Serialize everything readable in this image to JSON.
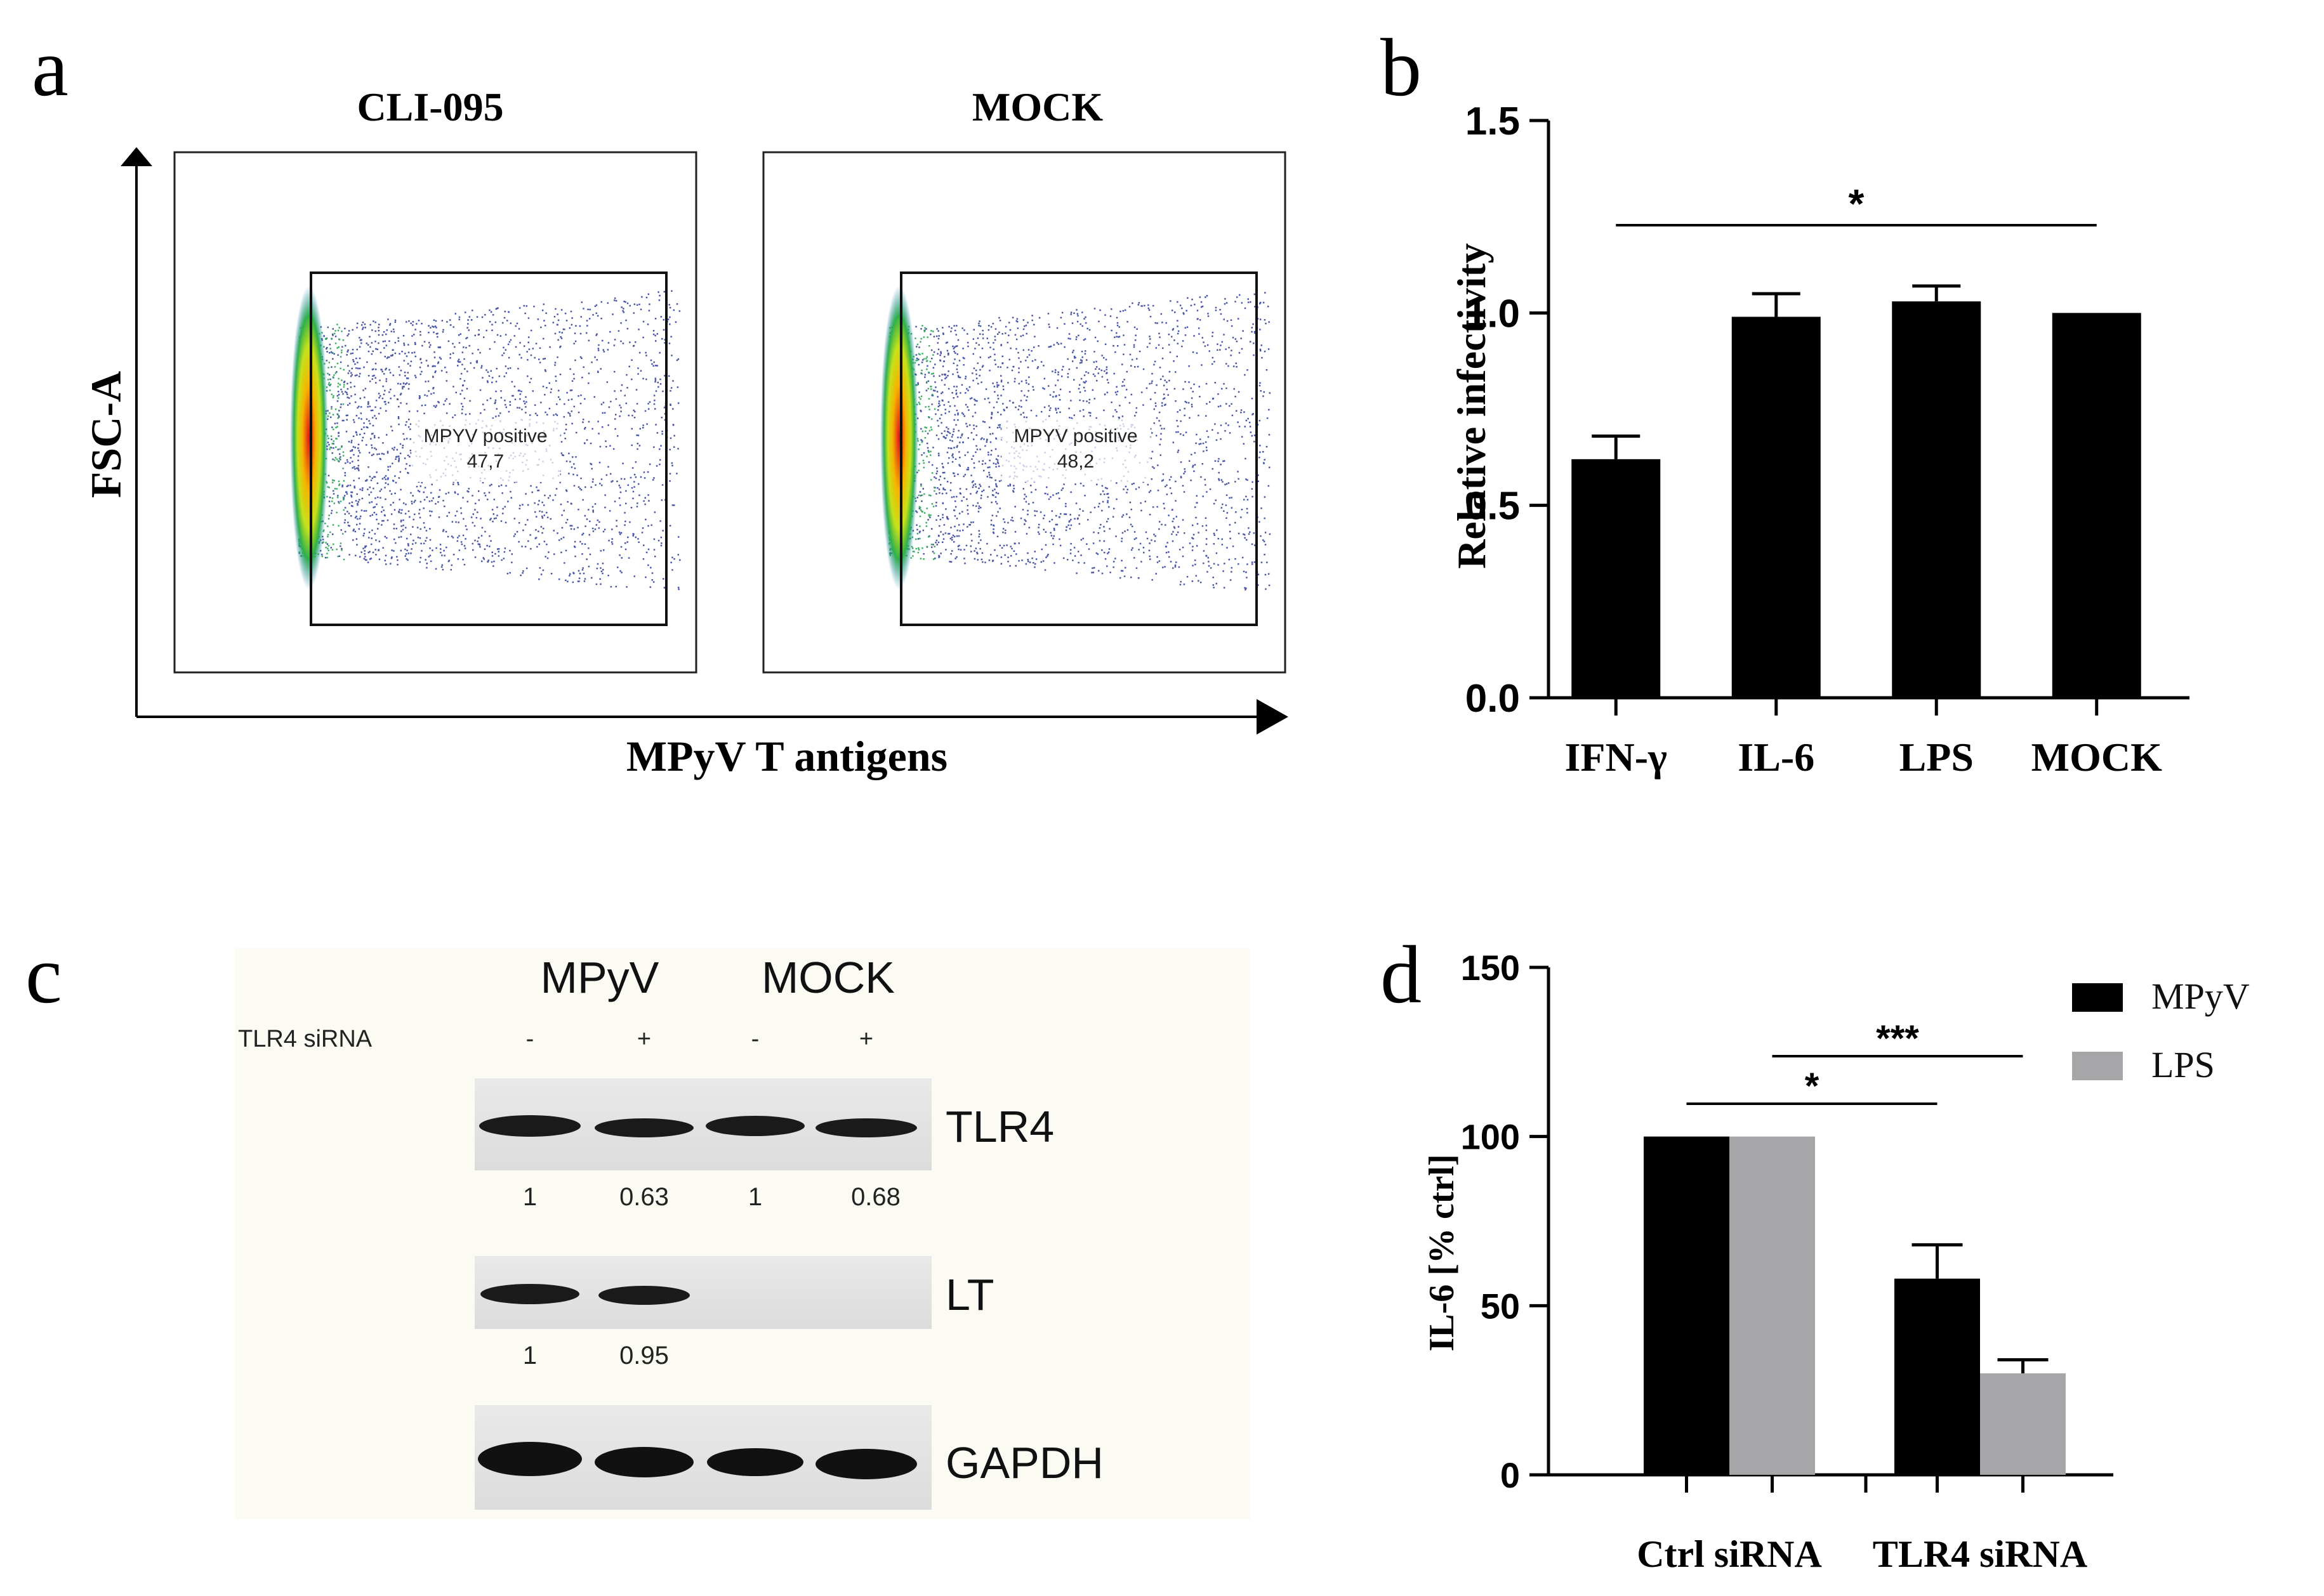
{
  "panels": {
    "a": {
      "letter": "a",
      "xaxis_label": "MPyV T antigens",
      "yaxis_label": "FSC-A",
      "plots": [
        {
          "title": "CLI-095",
          "gate_name": "MPYV positive",
          "gate_value": "47,7"
        },
        {
          "title": "MOCK",
          "gate_name": "MPYV positive",
          "gate_value": "48,2"
        }
      ]
    },
    "b": {
      "letter": "b"
    },
    "c": {
      "letter": "c",
      "groups": [
        "MPyV",
        "MOCK"
      ],
      "row_label": "TLR4 siRNA",
      "signs": [
        "-",
        "+",
        "-",
        "+"
      ],
      "blots": [
        {
          "label": "TLR4",
          "values": [
            "1",
            "0.63",
            "1",
            "0.68"
          ]
        },
        {
          "label": "LT",
          "values": [
            "1",
            "0.95",
            "",
            ""
          ]
        },
        {
          "label": "GAPDH",
          "values": []
        }
      ]
    },
    "d": {
      "letter": "d"
    }
  },
  "chart_data": [
    {
      "panel": "b",
      "type": "bar",
      "categories": [
        "IFN-γ",
        "IL-6",
        "LPS",
        "MOCK"
      ],
      "values": [
        0.62,
        0.99,
        1.03,
        1.0
      ],
      "errors": [
        0.06,
        0.06,
        0.04,
        0.0
      ],
      "ylabel": "Relative infectivity",
      "ylim": [
        0,
        1.5
      ],
      "yticks": [
        "0.0",
        "0.5",
        "1.0",
        "1.5"
      ],
      "significance": [
        {
          "from": "IFN-γ",
          "to": "MOCK",
          "label": "*"
        }
      ],
      "colors": {
        "bar": "#000000"
      }
    },
    {
      "panel": "d",
      "type": "bar",
      "categories": [
        "Ctrl siRNA",
        "TLR4 siRNA"
      ],
      "series": [
        {
          "name": "MPyV",
          "values": [
            100,
            58
          ],
          "errors": [
            0,
            10
          ],
          "color": "#000000"
        },
        {
          "name": "LPS",
          "values": [
            100,
            30
          ],
          "errors": [
            0,
            4
          ],
          "color": "#a6a6a8"
        }
      ],
      "ylabel": "IL-6 [% ctrl]",
      "ylim": [
        0,
        150
      ],
      "yticks": [
        "0",
        "50",
        "100",
        "150"
      ],
      "legend": "top-right",
      "significance": [
        {
          "label": "*",
          "from": "Ctrl siRNA MPyV",
          "to": "TLR4 siRNA MPyV"
        },
        {
          "label": "***",
          "from": "Ctrl siRNA LPS",
          "to": "TLR4 siRNA LPS"
        }
      ]
    }
  ]
}
